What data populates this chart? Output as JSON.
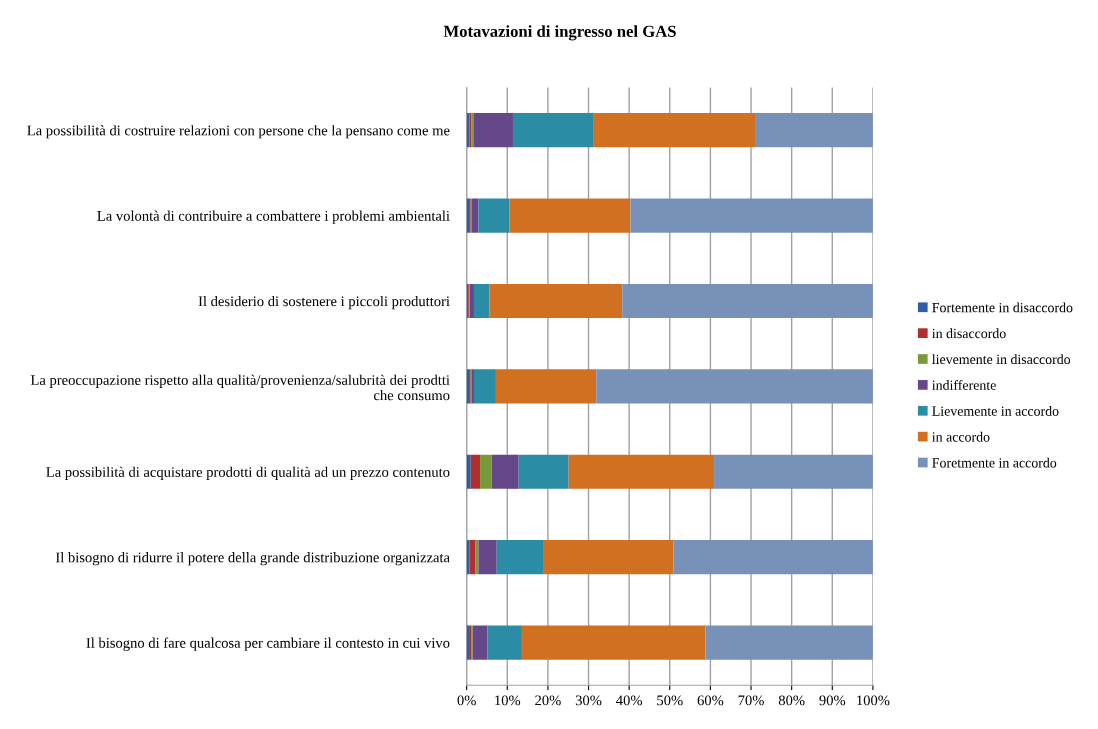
{
  "chart_data": {
    "type": "bar",
    "orientation": "horizontal",
    "stacked": true,
    "title": "Motavazioni di ingresso nel GAS",
    "categories": [
      "La possibilità di costruire relazioni con persone che la pensano come me",
      "La volontà di contribuire a combattere i problemi ambientali",
      "Il desiderio di sostenere i piccoli produttori",
      "La preoccupazione rispetto alla qualità/provenienza/salubrità dei prodtti\nche consumo",
      "La possibilità di acquistare prodotti di qualità ad un prezzo contenuto",
      "Il bisogno di ridurre il potere della grande distribuzione organizzata",
      "Il bisogno di fare qualcosa per cambiare il contesto in cui vivo"
    ],
    "series": [
      {
        "name": "Fortemente in disaccordo",
        "color": "#2d5fa8",
        "values": [
          0.7,
          0.6,
          0.4,
          0.6,
          1.0,
          0.7,
          0.6
        ]
      },
      {
        "name": "in disaccordo",
        "color": "#b03030",
        "values": [
          0.5,
          0.4,
          0.3,
          0.4,
          2.3,
          1.4,
          0.5
        ]
      },
      {
        "name": "lievemente in disaccordo",
        "color": "#7a9a3a",
        "values": [
          0.6,
          0.2,
          0.1,
          0.3,
          2.9,
          0.8,
          0.4
        ]
      },
      {
        "name": "indifferente",
        "color": "#64488a",
        "values": [
          9.6,
          1.7,
          1.0,
          0.5,
          6.6,
          4.5,
          3.6
        ]
      },
      {
        "name": "Lievemente in accordo",
        "color": "#2a8ca5",
        "values": [
          19.9,
          7.6,
          3.8,
          5.4,
          12.3,
          11.4,
          8.5
        ]
      },
      {
        "name": "in accordo",
        "color": "#d07020",
        "values": [
          39.9,
          29.8,
          32.7,
          24.7,
          35.8,
          32.1,
          45.2
        ]
      },
      {
        "name": "Foretmente in accordo",
        "color": "#7891b9",
        "values": [
          28.8,
          59.7,
          61.7,
          68.1,
          39.1,
          49.1,
          41.2
        ]
      }
    ],
    "xlim": [
      0,
      100
    ],
    "xticks": [
      {
        "value": 0,
        "label": "0%"
      },
      {
        "value": 10,
        "label": "10%"
      },
      {
        "value": 20,
        "label": "20%"
      },
      {
        "value": 30,
        "label": "30%"
      },
      {
        "value": 40,
        "label": "40%"
      },
      {
        "value": 50,
        "label": "50%"
      },
      {
        "value": 60,
        "label": "60%"
      },
      {
        "value": 70,
        "label": "70%"
      },
      {
        "value": 80,
        "label": "80%"
      },
      {
        "value": 90,
        "label": "90%"
      },
      {
        "value": 100,
        "label": "100%"
      }
    ],
    "grid": "x",
    "legend": "right"
  }
}
